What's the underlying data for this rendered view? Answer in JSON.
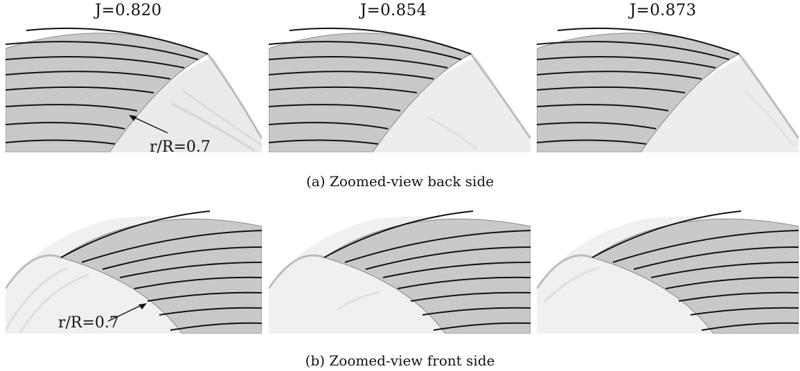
{
  "figure": {
    "rows": [
      {
        "id": "a",
        "caption": "(a) Zoomed-view back side",
        "panel_titles": [
          "J=0.820",
          "J=0.854",
          "J=0.873"
        ],
        "annotation": "r/R=0.7"
      },
      {
        "id": "b",
        "caption": "(b) Zoomed-view front side",
        "annotation": "r/R=0.7"
      }
    ],
    "colors": {
      "blade": "#c8c8c8",
      "contour": "#111111",
      "vortex": "#e0e0e0",
      "background": "#ffffff"
    },
    "contour_line_count": 8
  }
}
